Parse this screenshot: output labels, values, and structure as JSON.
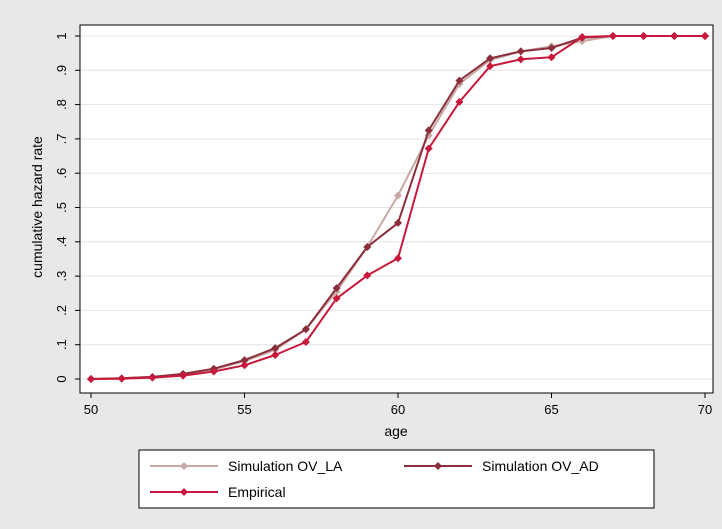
{
  "chart_data": {
    "type": "line",
    "xlabel": "age",
    "ylabel": "cumulative hazard rate",
    "xlim": [
      50,
      70
    ],
    "ylim": [
      0,
      1
    ],
    "x_ticks": [
      50,
      55,
      60,
      65,
      70
    ],
    "x_tick_labels": [
      "50",
      "55",
      "60",
      "65",
      "70"
    ],
    "y_ticks": [
      0,
      0.1,
      0.2,
      0.3,
      0.4,
      0.5,
      0.6,
      0.7,
      0.8,
      0.9,
      1
    ],
    "y_tick_labels": [
      "0",
      ".1",
      ".2",
      ".3",
      ".4",
      ".5",
      ".6",
      ".7",
      ".8",
      ".9",
      "1"
    ],
    "grid": "horizontal",
    "legend_position": "bottom",
    "x": [
      50,
      51,
      52,
      53,
      54,
      55,
      56,
      57,
      58,
      59,
      60,
      61,
      62,
      63,
      64,
      65,
      66,
      67,
      68,
      69,
      70
    ],
    "series": [
      {
        "name": "Simulation OV_LA",
        "color": "#c8a8a2",
        "values": [
          0,
          0.002,
          0.006,
          0.014,
          0.028,
          0.052,
          0.085,
          0.145,
          0.255,
          0.385,
          0.535,
          0.71,
          0.86,
          0.93,
          0.955,
          0.97,
          0.985,
          1.0,
          1.0,
          1.0,
          1.0
        ]
      },
      {
        "name": "Simulation OV_AD",
        "color": "#8c2f3c",
        "values": [
          0,
          0.002,
          0.006,
          0.015,
          0.03,
          0.055,
          0.09,
          0.145,
          0.265,
          0.385,
          0.455,
          0.725,
          0.87,
          0.935,
          0.955,
          0.965,
          0.995,
          1.0,
          1.0,
          1.0,
          1.0
        ]
      },
      {
        "name": "Empirical",
        "color": "#c8193c",
        "values": [
          0,
          0.001,
          0.004,
          0.01,
          0.022,
          0.04,
          0.07,
          0.108,
          0.235,
          0.302,
          0.352,
          0.672,
          0.808,
          0.912,
          0.932,
          0.938,
          0.997,
          1.0,
          1.0,
          1.0,
          1.0
        ]
      }
    ]
  }
}
